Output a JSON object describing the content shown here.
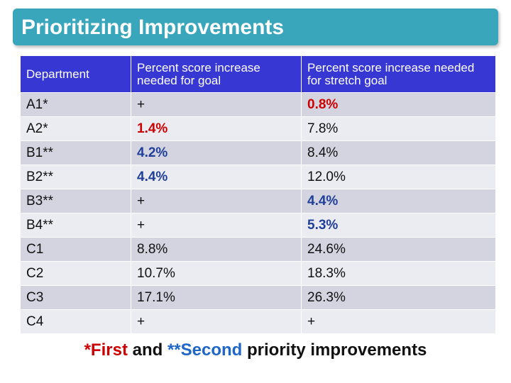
{
  "title": "Prioritizing Improvements",
  "table": {
    "headers": [
      "Department",
      "Percent score increase needed for goal",
      "Percent score increase needed for stretch goal"
    ],
    "rows": [
      {
        "dept": "A1*",
        "goal": "+",
        "stretch": "0.8%",
        "goal_style": "plain",
        "stretch_style": "red"
      },
      {
        "dept": "A2*",
        "goal": "1.4%",
        "stretch": "7.8%",
        "goal_style": "red",
        "stretch_style": "plain"
      },
      {
        "dept": "B1**",
        "goal": "4.2%",
        "stretch": "8.4%",
        "goal_style": "blue",
        "stretch_style": "plain"
      },
      {
        "dept": "B2**",
        "goal": "4.4%",
        "stretch": "12.0%",
        "goal_style": "blue",
        "stretch_style": "plain"
      },
      {
        "dept": "B3**",
        "goal": "+",
        "stretch": "4.4%",
        "goal_style": "plain",
        "stretch_style": "blue"
      },
      {
        "dept": "B4**",
        "goal": "+",
        "stretch": "5.3%",
        "goal_style": "plain",
        "stretch_style": "blue"
      },
      {
        "dept": "C1",
        "goal": "8.8%",
        "stretch": "24.6%",
        "goal_style": "plain",
        "stretch_style": "plain"
      },
      {
        "dept": "C2",
        "goal": "10.7%",
        "stretch": "18.3%",
        "goal_style": "plain",
        "stretch_style": "plain"
      },
      {
        "dept": "C3",
        "goal": "17.1%",
        "stretch": "26.3%",
        "goal_style": "plain",
        "stretch_style": "plain"
      },
      {
        "dept": "C4",
        "goal": "+",
        "stretch": "+",
        "goal_style": "plain",
        "stretch_style": "plain"
      }
    ]
  },
  "footnote": {
    "part1": "*First",
    "part2": " and ",
    "part3": "**Second",
    "part4": " priority improvements"
  },
  "colors": {
    "title_bar": "#3aa6bb",
    "header_bg": "#3737d4",
    "first_priority": "#cc0000",
    "second_priority": "#1f3f99"
  }
}
